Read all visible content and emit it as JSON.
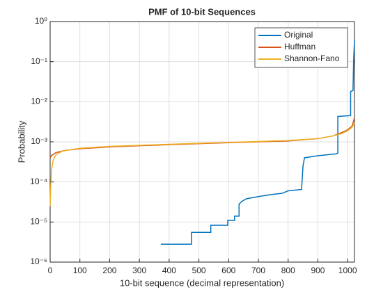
{
  "chart_data": {
    "type": "line",
    "title": "PMF of 10-bit Sequences",
    "xlabel": "10-bit sequence (decimal representation)",
    "ylabel": "Probability",
    "log_y": true,
    "grid": true,
    "legend": "upper right",
    "xlim": [
      0,
      1023
    ],
    "xticks": [
      0,
      100,
      200,
      300,
      400,
      500,
      600,
      700,
      800,
      900,
      1000
    ],
    "ylim": [
      1e-06,
      1
    ],
    "yticks": [
      {
        "value": 1e-06,
        "label": "10⁻⁶"
      },
      {
        "value": 1e-05,
        "label": "10⁻⁵"
      },
      {
        "value": 0.0001,
        "label": "10⁻⁴"
      },
      {
        "value": 0.001,
        "label": "10⁻³"
      },
      {
        "value": 0.01,
        "label": "10⁻²"
      },
      {
        "value": 0.1,
        "label": "10⁻¹"
      },
      {
        "value": 1,
        "label": "10⁰"
      }
    ],
    "series": [
      {
        "name": "Original",
        "color": "#0072BD",
        "x": [
          372,
          475,
          475,
          540,
          540,
          597,
          597,
          620,
          620,
          635,
          635,
          645,
          660,
          700,
          740,
          780,
          800,
          845,
          850,
          855,
          900,
          960,
          967,
          967,
          1010,
          1010,
          1018,
          1020,
          1023
        ],
        "values": [
          2.8e-06,
          2.8e-06,
          5.5e-06,
          5.5e-06,
          8.3e-06,
          8.3e-06,
          1.1e-05,
          1.1e-05,
          1.4e-05,
          1.4e-05,
          2.8e-05,
          3.3e-05,
          3.8e-05,
          4.3e-05,
          4.8e-05,
          5.2e-05,
          6e-05,
          6.5e-05,
          0.00025,
          0.0004,
          0.00045,
          0.0005,
          0.00052,
          0.0043,
          0.0045,
          0.018,
          0.019,
          0.1,
          0.35
        ]
      },
      {
        "name": "Huffman",
        "color": "#D95319",
        "x": [
          0,
          5,
          20,
          50,
          100,
          200,
          300,
          400,
          500,
          600,
          700,
          800,
          900,
          950,
          980,
          1000,
          1015,
          1023
        ],
        "values": [
          0.0004,
          0.00046,
          0.00054,
          0.00061,
          0.00067,
          0.00075,
          0.0008,
          0.00085,
          0.0009,
          0.00095,
          0.001,
          0.00105,
          0.0012,
          0.0014,
          0.0017,
          0.002,
          0.0025,
          0.004
        ]
      },
      {
        "name": "Shannon-Fano",
        "color": "#EDB120",
        "x": [
          0,
          2,
          5,
          10,
          20,
          40,
          70,
          100,
          200,
          300,
          400,
          500,
          600,
          700,
          800,
          900,
          950,
          980,
          1000,
          1015,
          1023
        ],
        "values": [
          2.5e-05,
          8e-05,
          0.0002,
          0.00035,
          0.00048,
          0.00058,
          0.00064,
          0.00069,
          0.00077,
          0.00082,
          0.00087,
          0.00092,
          0.00097,
          0.00102,
          0.00108,
          0.0012,
          0.0014,
          0.0016,
          0.0019,
          0.0023,
          0.003
        ]
      }
    ]
  }
}
